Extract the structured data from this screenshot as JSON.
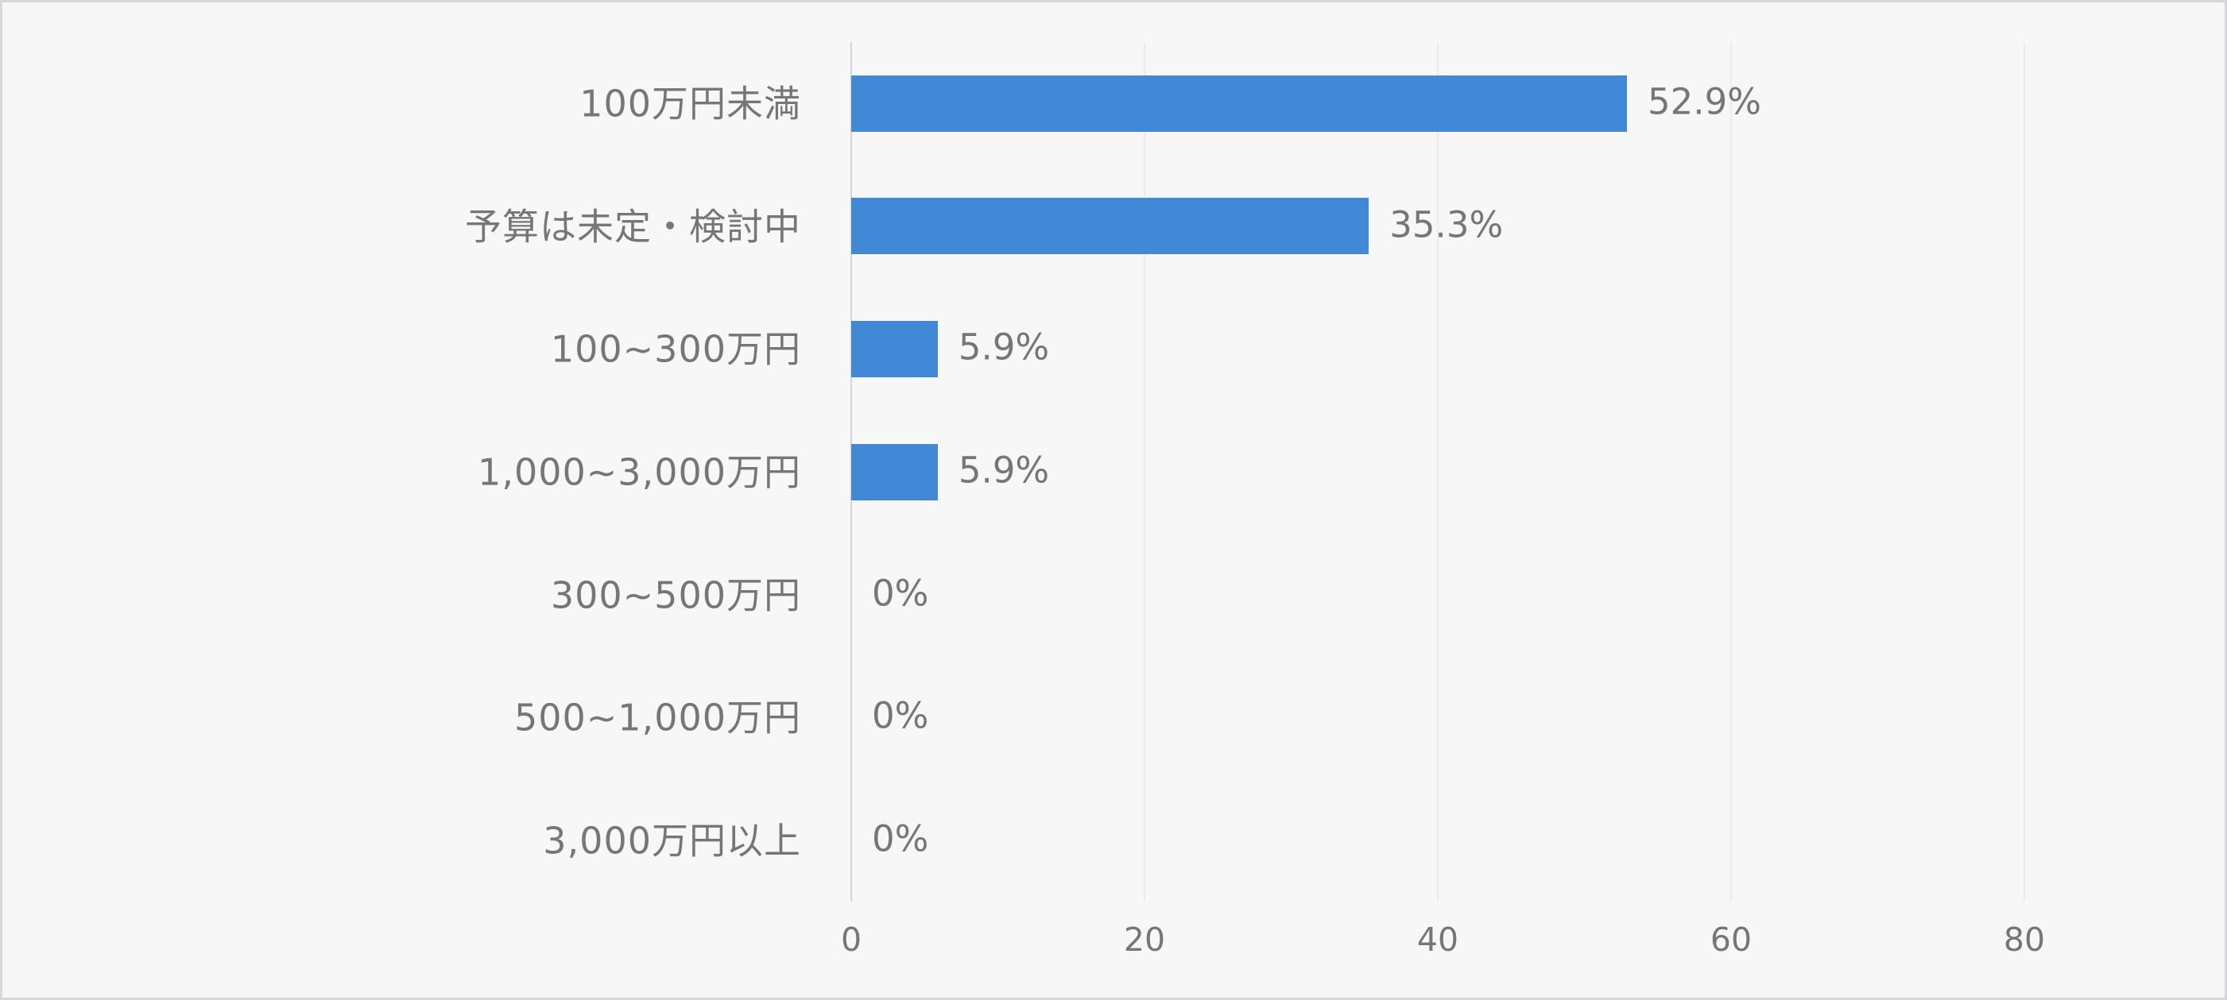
{
  "chart_data": {
    "type": "bar",
    "orientation": "horizontal",
    "title": "",
    "xlabel": "",
    "ylabel": "",
    "categories": [
      "100万円未満",
      "予算は未定・検討中",
      "100~300万円",
      "1,000~3,000万円",
      "300~500万円",
      "500~1,000万円",
      "3,000万円以上"
    ],
    "values": [
      52.9,
      35.3,
      5.9,
      5.9,
      0,
      0,
      0
    ],
    "value_labels": [
      "52.9%",
      "35.3%",
      "5.9%",
      "5.9%",
      "0%",
      "0%",
      "0%"
    ],
    "x_ticks": [
      0,
      20,
      40,
      60,
      80
    ],
    "xlim": [
      0,
      94
    ],
    "grid": true,
    "legend": "none",
    "colors": {
      "bar": "#4189d6",
      "text": "#767677",
      "gridline": "#ebebed",
      "zero_line": "#d5d5d8",
      "background": "#f7f7f8",
      "border": "#d6d6db"
    }
  }
}
